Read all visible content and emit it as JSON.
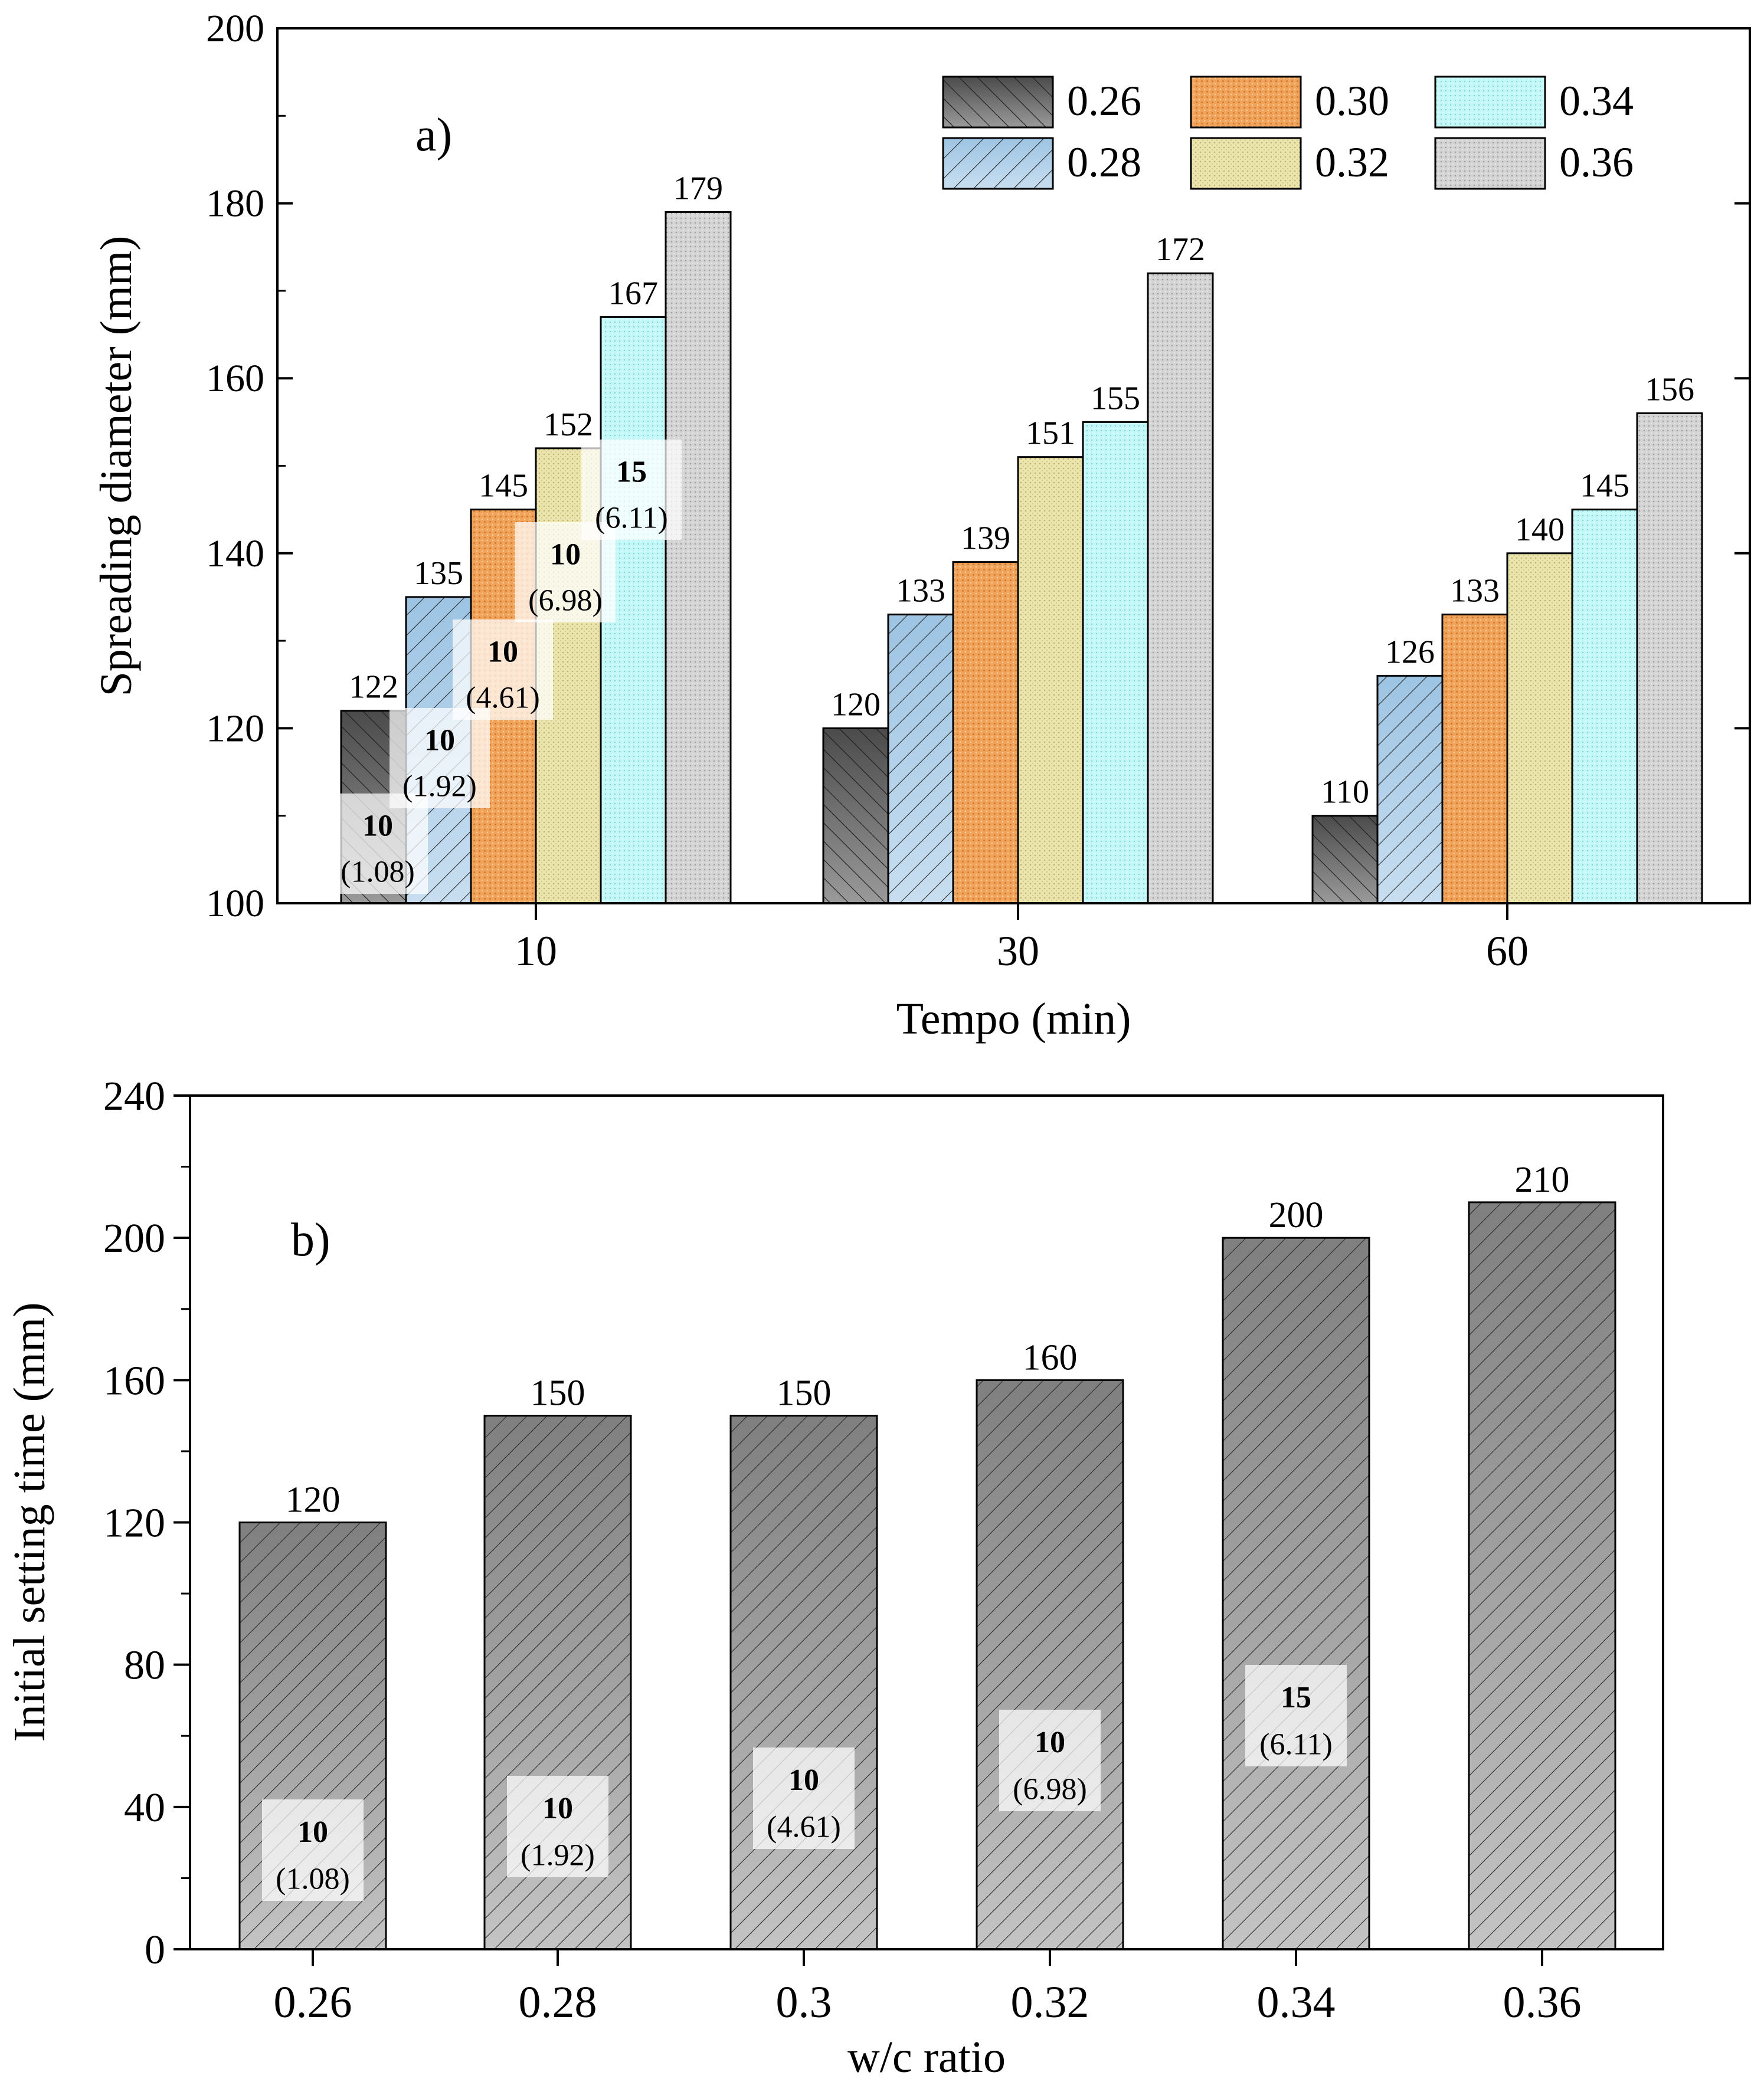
{
  "chart_data": [
    {
      "type": "bar",
      "panel_label": "a)",
      "xlabel": "Tempo (min)",
      "ylabel": "Spreading diameter (mm)",
      "ylim": [
        100,
        200
      ],
      "yticks": [
        "100",
        "120",
        "140",
        "160",
        "180",
        "200"
      ],
      "categories": [
        "10",
        "30",
        "60"
      ],
      "legend_position": "top-right",
      "series": [
        {
          "name": "0.26",
          "values": [
            122,
            120,
            110
          ],
          "labels": [
            "122",
            "120",
            "110"
          ],
          "color": "#5f5f5f"
        },
        {
          "name": "0.28",
          "values": [
            135,
            133,
            126
          ],
          "labels": [
            "135",
            "133",
            "126"
          ],
          "color": "#a9cbe6"
        },
        {
          "name": "0.30",
          "values": [
            145,
            139,
            133
          ],
          "labels": [
            "145",
            "139",
            "133"
          ],
          "color": "#f2a660"
        },
        {
          "name": "0.32",
          "values": [
            152,
            151,
            140
          ],
          "labels": [
            "152",
            "151",
            "140"
          ],
          "color": "#e8e2a8"
        },
        {
          "name": "0.34",
          "values": [
            167,
            155,
            145
          ],
          "labels": [
            "167",
            "155",
            "145"
          ],
          "color": "#bdf6f6"
        },
        {
          "name": "0.36",
          "values": [
            179,
            172,
            156
          ],
          "labels": [
            "179",
            "172",
            "156"
          ],
          "color": "#d2d2d2"
        }
      ],
      "annotations": [
        {
          "series": "0.26",
          "bold": "10",
          "sub": "(1.08)"
        },
        {
          "series": "0.28",
          "bold": "10",
          "sub": "(1.92)"
        },
        {
          "series": "0.30",
          "bold": "10",
          "sub": "(4.61)"
        },
        {
          "series": "0.32",
          "bold": "10",
          "sub": "(6.98)"
        },
        {
          "series": "0.34",
          "bold": "15",
          "sub": "(6.11)"
        }
      ]
    },
    {
      "type": "bar",
      "panel_label": "b)",
      "xlabel": "w/c ratio",
      "ylabel": "Initial setting time (mm)",
      "ylim": [
        0,
        240
      ],
      "yticks": [
        "0",
        "40",
        "80",
        "120",
        "160",
        "200",
        "240"
      ],
      "categories": [
        "0.26",
        "0.28",
        "0.3",
        "0.32",
        "0.34",
        "0.36"
      ],
      "values": [
        120,
        150,
        150,
        160,
        200,
        210
      ],
      "labels": [
        "120",
        "150",
        "150",
        "160",
        "200",
        "210"
      ],
      "annotations": [
        {
          "bold": "10",
          "sub": "(1.08)"
        },
        {
          "bold": "10",
          "sub": "(1.92)"
        },
        {
          "bold": "10",
          "sub": "(4.61)"
        },
        {
          "bold": "10",
          "sub": "(6.98)"
        },
        {
          "bold": "15",
          "sub": "(6.11)"
        }
      ]
    }
  ]
}
